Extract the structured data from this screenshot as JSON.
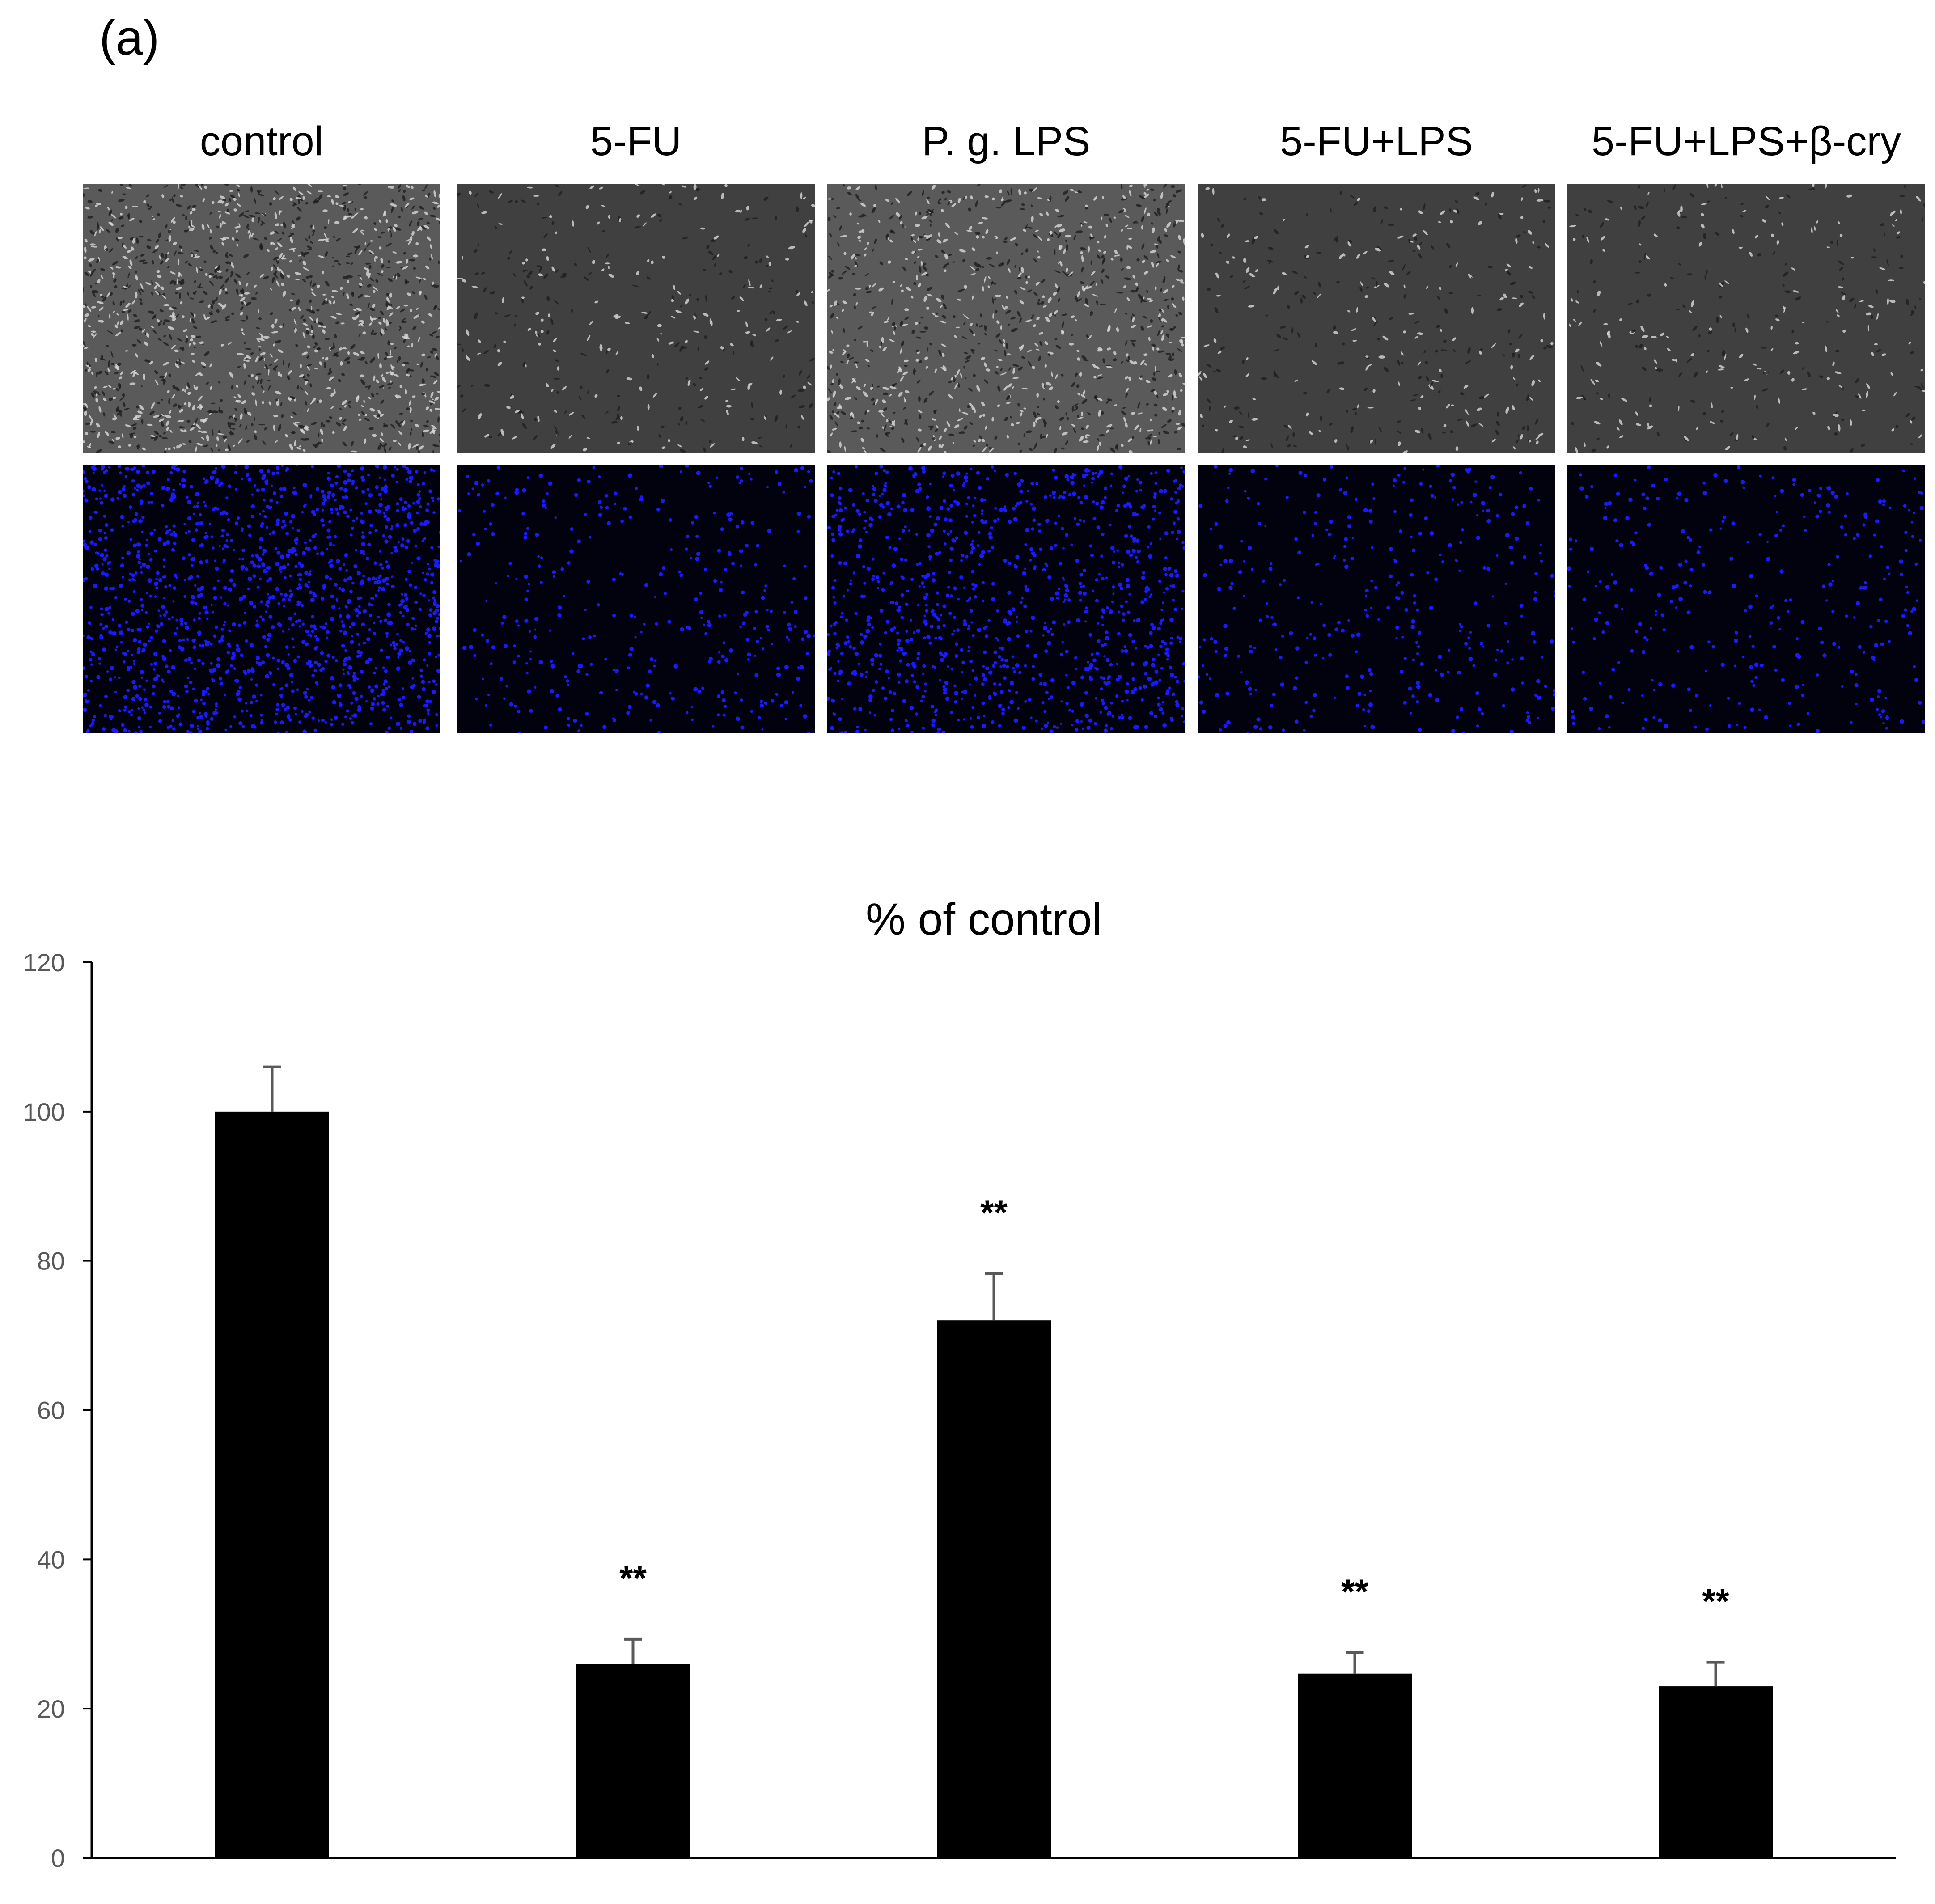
{
  "figure": {
    "panel_label": "(a)",
    "columns": [
      {
        "label": "control",
        "density": 1.0
      },
      {
        "label": "5-FU",
        "density": 0.26
      },
      {
        "label": "P. g. LPS",
        "density": 0.72
      },
      {
        "label": "5-FU+LPS",
        "density": 0.25
      },
      {
        "label": "5-FU+LPS+β-cry",
        "density": 0.23
      }
    ],
    "row_types": [
      "phase-contrast-image",
      "fluorescence-nuclei-image"
    ]
  },
  "colors": {
    "bar": "#000000",
    "error_bar": "#595959",
    "axis": "#000000",
    "nuclei": "#1a1aff",
    "phase_bg": "#3c3c3c",
    "fluor_bg": "#02020e"
  },
  "chart_data": {
    "type": "bar",
    "title": "% of control",
    "categories": [
      "control",
      "5-FU",
      "P. g. LPS",
      "5-FU+LPS",
      "5-FU+LPS+β-cry"
    ],
    "values": [
      100,
      26,
      72,
      24.7,
      23
    ],
    "errors": [
      6,
      3.3,
      6.3,
      2.8,
      3.2
    ],
    "significance": [
      "",
      "**",
      "**",
      "**",
      "**"
    ],
    "ylim": [
      0,
      120
    ],
    "yticks": [
      0,
      20,
      40,
      60,
      80,
      100,
      120
    ],
    "xlabel": "",
    "ylabel": "",
    "show_category_labels": false,
    "grid": false
  }
}
